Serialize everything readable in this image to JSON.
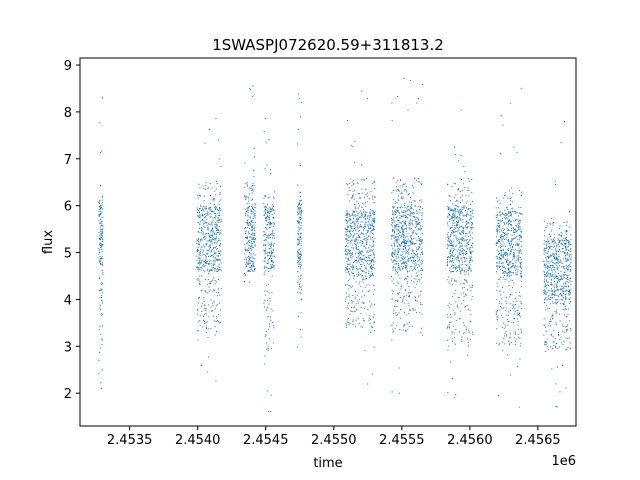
{
  "chart_data": {
    "type": "scatter",
    "title": "1SWASPJ072620.59+311813.2",
    "xlabel": "time",
    "ylabel": "flux",
    "x_offset_label": "1e6",
    "xlim": [
      2453135,
      2456780
    ],
    "ylim": [
      1.3,
      9.15
    ],
    "xticks": [
      2453500,
      2454000,
      2454500,
      2455000,
      2455500,
      2456000,
      2456500
    ],
    "xtick_labels": [
      "2.4535",
      "2.4540",
      "2.4545",
      "2.4550",
      "2.4555",
      "2.4560",
      "2.4565"
    ],
    "yticks": [
      2,
      3,
      4,
      5,
      6,
      7,
      8,
      9
    ],
    "ytick_labels": [
      "2",
      "3",
      "4",
      "5",
      "6",
      "7",
      "8",
      "9"
    ],
    "grid": false,
    "marker_color": "#1f77b4",
    "observing_seasons": [
      {
        "x_start": 2453270,
        "x_end": 2453300,
        "y_min": 3.1,
        "y_max": 6.2,
        "y_center": 5.4
      },
      {
        "x_start": 2453990,
        "x_end": 2454170,
        "y_min": 3.3,
        "y_max": 6.5,
        "y_center": 5.3
      },
      {
        "x_start": 2454340,
        "x_end": 2454420,
        "y_min": 4.6,
        "y_max": 6.5,
        "y_center": 5.3
      },
      {
        "x_start": 2454480,
        "x_end": 2454560,
        "y_min": 2.8,
        "y_max": 6.3,
        "y_center": 5.3
      },
      {
        "x_start": 2454730,
        "x_end": 2454760,
        "y_min": 4.0,
        "y_max": 6.3,
        "y_center": 5.4
      },
      {
        "x_start": 2455080,
        "x_end": 2455300,
        "y_min": 3.4,
        "y_max": 6.6,
        "y_center": 5.2
      },
      {
        "x_start": 2455420,
        "x_end": 2455650,
        "y_min": 3.3,
        "y_max": 6.6,
        "y_center": 5.3
      },
      {
        "x_start": 2455830,
        "x_end": 2456020,
        "y_min": 3.0,
        "y_max": 6.6,
        "y_center": 5.3
      },
      {
        "x_start": 2456190,
        "x_end": 2456380,
        "y_min": 3.0,
        "y_max": 6.4,
        "y_center": 5.2
      },
      {
        "x_start": 2456540,
        "x_end": 2456740,
        "y_min": 2.9,
        "y_max": 5.7,
        "y_center": 4.6
      }
    ]
  }
}
